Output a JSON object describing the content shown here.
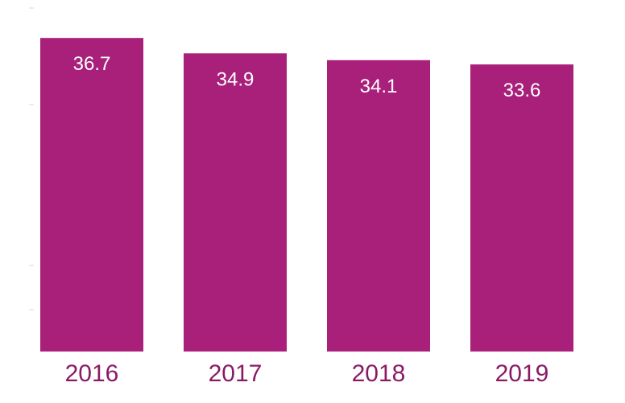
{
  "chart_data": {
    "type": "bar",
    "categories": [
      "2016",
      "2017",
      "2018",
      "2019"
    ],
    "values": [
      36.7,
      34.9,
      34.1,
      33.6
    ],
    "value_labels": [
      "36.7",
      "34.9",
      "34.1",
      "33.6"
    ],
    "title": "",
    "xlabel": "",
    "ylabel": "",
    "ylim": [
      0,
      37
    ],
    "grid": false,
    "legend": "none",
    "colors": {
      "bar": "#a8207a",
      "bar_label": "#ffffff",
      "tick_label": "#8a1a66",
      "axis_marks": "#d8d8d8"
    }
  }
}
